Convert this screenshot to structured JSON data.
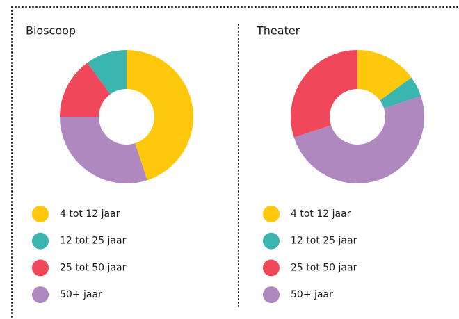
{
  "chart_data": [
    {
      "type": "donut",
      "title": "Bioscoop",
      "categories": [
        "4 tot 12 jaar",
        "12 tot 25 jaar",
        "25 tot 50 jaar",
        "50+ jaar"
      ],
      "values": [
        45,
        10,
        15,
        30
      ],
      "colors": [
        "#FFC80A",
        "#3BB5B0",
        "#F0475A",
        "#B088C0"
      ],
      "slice_order": [
        0,
        3,
        2,
        1
      ]
    },
    {
      "type": "donut",
      "title": "Theater",
      "categories": [
        "4 tot 12 jaar",
        "12 tot 25 jaar",
        "25 tot 50 jaar",
        "50+ jaar"
      ],
      "values": [
        15,
        5,
        30,
        50
      ],
      "colors": [
        "#FFC80A",
        "#3BB5B0",
        "#F0475A",
        "#B088C0"
      ],
      "slice_order": [
        0,
        1,
        3,
        2
      ]
    }
  ]
}
